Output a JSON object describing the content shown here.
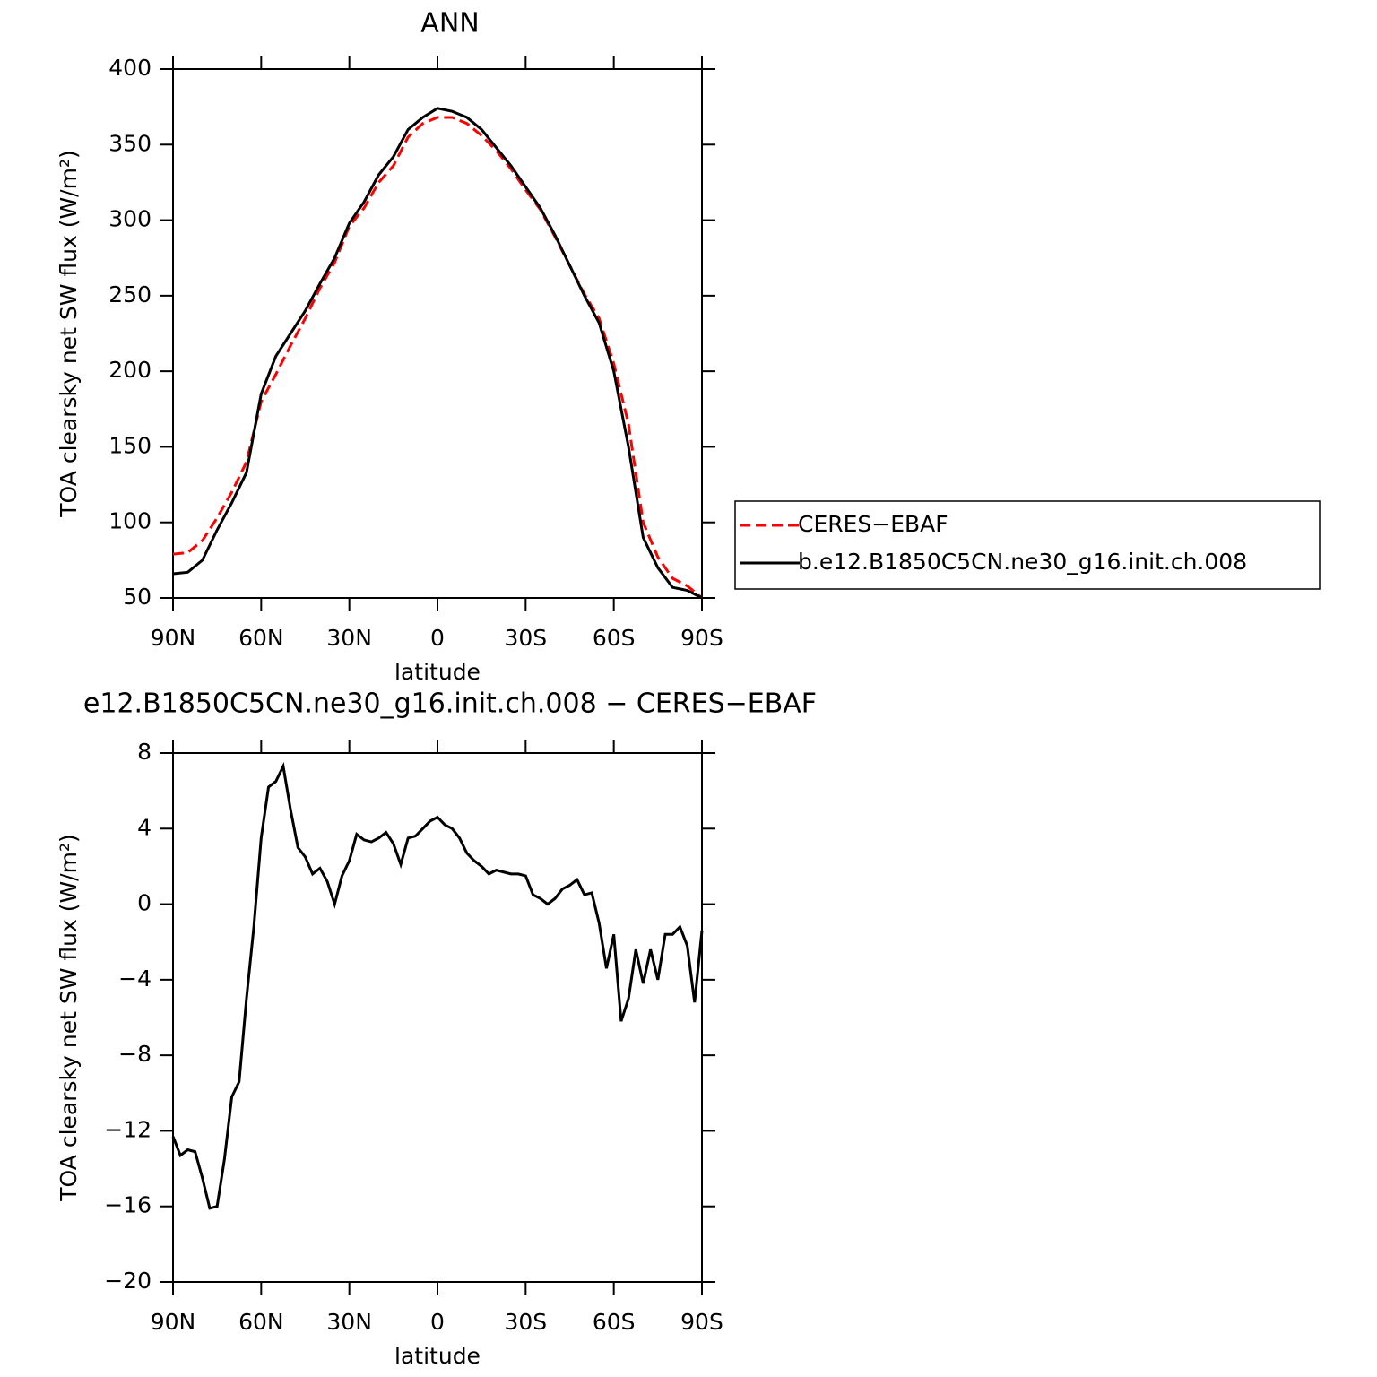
{
  "chart_data": [
    {
      "type": "line",
      "title": "ANN",
      "x_label": "latitude",
      "y_label": "TOA clearsky net SW flux (W/m²)",
      "x": [
        90,
        85,
        80,
        75,
        70,
        65,
        60,
        55,
        50,
        45,
        40,
        35,
        30,
        25,
        20,
        15,
        10,
        5,
        0,
        -5,
        -10,
        -15,
        -20,
        -25,
        -30,
        -35,
        -40,
        -45,
        -50,
        -55,
        -60,
        -65,
        -70,
        -75,
        -80,
        -85,
        -90
      ],
      "series": [
        {
          "name": "CERES−EBAF",
          "color": "#ff0000",
          "style": "dashed",
          "values": [
            79,
            80,
            88,
            103,
            120,
            140,
            180,
            198,
            217,
            235,
            255,
            272,
            296,
            308,
            325,
            336,
            355,
            364,
            368,
            368,
            364,
            356,
            346,
            334,
            320,
            307,
            289,
            270,
            251,
            235,
            205,
            165,
            100,
            77,
            63,
            58,
            50
          ]
        },
        {
          "name": "b.e12.B1850C5CN.ne30_g16.init.ch.008",
          "color": "#000000",
          "style": "solid",
          "values": [
            66,
            67,
            75,
            95,
            113,
            133,
            185,
            210,
            225,
            240,
            258,
            275,
            298,
            312,
            330,
            342,
            360,
            368,
            374,
            372,
            368,
            360,
            348,
            336,
            322,
            308,
            290,
            270,
            250,
            232,
            200,
            150,
            90,
            70,
            57,
            55,
            50
          ]
        }
      ],
      "xlim": [
        90,
        -90
      ],
      "xticks": [
        {
          "value": 90,
          "label": "90N"
        },
        {
          "value": 60,
          "label": "60N"
        },
        {
          "value": 30,
          "label": "30N"
        },
        0,
        {
          "value": -30,
          "label": "30S"
        },
        {
          "value": -60,
          "label": "60S"
        },
        {
          "value": -90,
          "label": "90S"
        }
      ],
      "ylim": [
        50,
        400
      ],
      "yticks": [
        50,
        100,
        150,
        200,
        250,
        300,
        350,
        400
      ],
      "legend": "right"
    },
    {
      "type": "line",
      "title": "e12.B1850C5CN.ne30_g16.init.ch.008 − CERES−EBAF",
      "x_label": "latitude",
      "y_label": "TOA clearsky net SW flux (W/m²)",
      "x": [
        90,
        87.5,
        85,
        82.5,
        80,
        77.5,
        75,
        72.5,
        70,
        67.5,
        65,
        62.5,
        60,
        57.5,
        55,
        52.5,
        50,
        47.5,
        45,
        42.5,
        40,
        37.5,
        35,
        32.5,
        30,
        27.5,
        25,
        22.5,
        20,
        17.5,
        15,
        12.5,
        10,
        7.5,
        5,
        2.5,
        0,
        -2.5,
        -5,
        -7.5,
        -10,
        -12.5,
        -15,
        -17.5,
        -20,
        -22.5,
        -25,
        -27.5,
        -30,
        -32.5,
        -35,
        -37.5,
        -40,
        -42.5,
        -45,
        -47.5,
        -50,
        -52.5,
        -55,
        -57.5,
        -60,
        -62.5,
        -65,
        -67.5,
        -70,
        -72.5,
        -75,
        -77.5,
        -80,
        -82.5,
        -85,
        -87.5,
        -90
      ],
      "series": [
        {
          "color": "#000000",
          "style": "solid",
          "values": [
            -12.3,
            -13.3,
            -13,
            -13.1,
            -14.5,
            -16.1,
            -16,
            -13.5,
            -10.2,
            -9.4,
            -5,
            -1.2,
            3.5,
            6.2,
            6.5,
            7.3,
            5,
            3,
            2.5,
            1.6,
            1.9,
            1.2,
            0,
            1.5,
            2.3,
            3.7,
            3.4,
            3.3,
            3.5,
            3.8,
            3.2,
            2.1,
            3.5,
            3.6,
            4,
            4.4,
            4.6,
            4.2,
            4,
            3.5,
            2.7,
            2.3,
            2,
            1.6,
            1.8,
            1.7,
            1.6,
            1.6,
            1.5,
            0.5,
            0.3,
            0,
            0.3,
            0.8,
            1,
            1.3,
            0.5,
            0.6,
            -1,
            -3.4,
            -1.6,
            -6.2,
            -5,
            -2.4,
            -4.2,
            -2.4,
            -4,
            -1.6,
            -1.6,
            -1.2,
            -2.2,
            -5.2,
            -1.4
          ]
        }
      ],
      "xlim": [
        90,
        -90
      ],
      "xticks": [
        {
          "value": 90,
          "label": "90N"
        },
        {
          "value": 60,
          "label": "60N"
        },
        {
          "value": 30,
          "label": "30N"
        },
        0,
        {
          "value": -30,
          "label": "30S"
        },
        {
          "value": -60,
          "label": "60S"
        },
        {
          "value": -90,
          "label": "90S"
        }
      ],
      "ylim": [
        -20,
        8
      ],
      "yticks": [
        {
          "value": -20,
          "label": "−20"
        },
        {
          "value": -16,
          "label": "−16"
        },
        {
          "value": -12,
          "label": "−12"
        },
        {
          "value": -8,
          "label": "−8"
        },
        {
          "value": -4,
          "label": "−4"
        },
        0,
        4,
        8
      ]
    }
  ]
}
